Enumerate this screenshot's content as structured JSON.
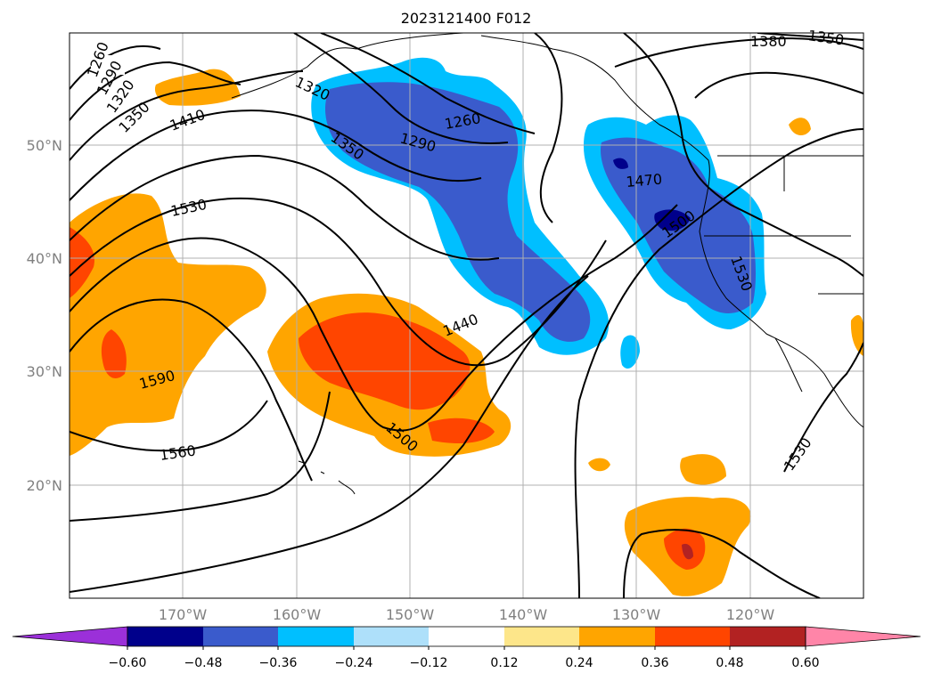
{
  "title": "2023121400 F012",
  "map": {
    "lat_labels": [
      "50°N",
      "40°N",
      "30°N",
      "20°N"
    ],
    "lon_labels": [
      "170°W",
      "160°W",
      "150°W",
      "140°W",
      "130°W",
      "120°W"
    ],
    "contour_labels": [
      "1260",
      "1290",
      "1320",
      "1350",
      "1410",
      "1320",
      "1350",
      "1260",
      "1290",
      "1380",
      "1350",
      "1470",
      "1530",
      "1500",
      "1530",
      "1440",
      "1590",
      "1560",
      "1500",
      "1530"
    ]
  },
  "colorbar": {
    "ticks": [
      "−0.60",
      "−0.48",
      "−0.36",
      "−0.24",
      "−0.12",
      "0.12",
      "0.24",
      "0.36",
      "0.48",
      "0.60"
    ],
    "colors": {
      "below": "#9b30d9",
      "neg_060": "#00008b",
      "neg_048": "#3a5bcc",
      "neg_036": "#00bfff",
      "neg_024": "#aee0fa",
      "neutral": "#ffffff",
      "pos_012": "#fde68a",
      "pos_024": "#ffa500",
      "pos_036": "#ff4500",
      "pos_048": "#b22222",
      "above": "#ff85a8"
    }
  }
}
